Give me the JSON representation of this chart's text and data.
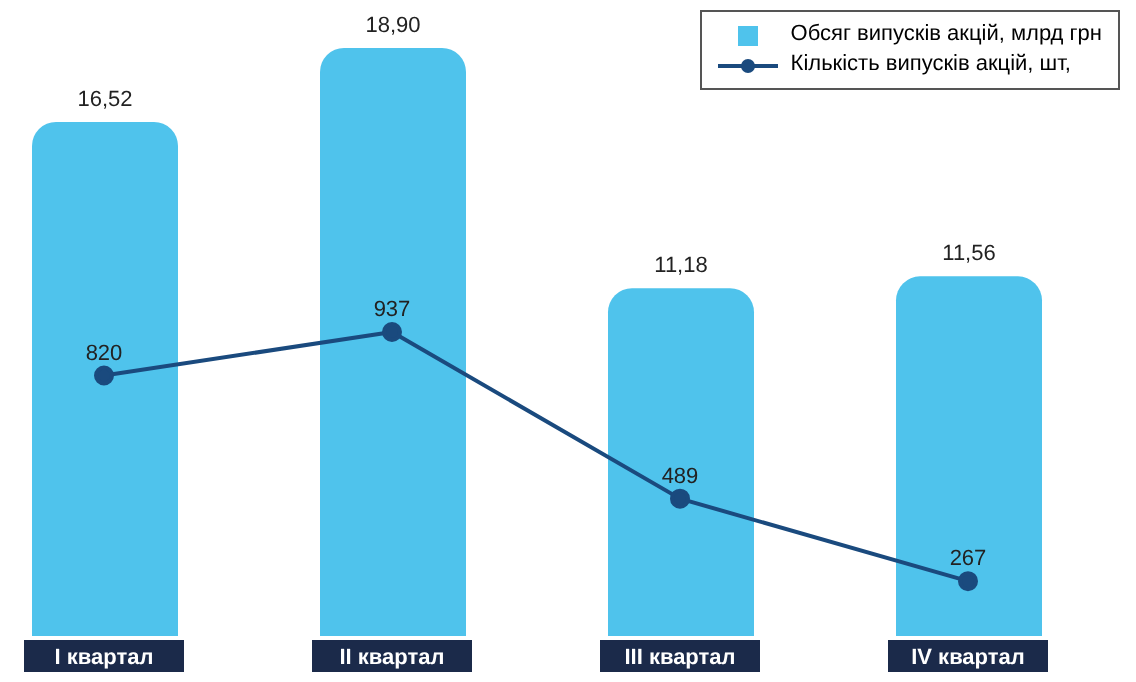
{
  "chart_data": {
    "type": "bar",
    "categories": [
      "I квартал",
      "II квартал",
      "III квартал",
      "IV квартал"
    ],
    "series": [
      {
        "name": "Обсяг випусків акцій, млрд грн",
        "color": "#4fc3ec",
        "values": [
          16.52,
          18.9,
          11.18,
          11.56
        ],
        "value_labels": [
          "16,52",
          "18,90",
          "11,18",
          "11,56"
        ]
      },
      {
        "name": "Кількість випусків акцій, шт,",
        "type": "line",
        "axis": "y2",
        "color": "#1a4a7e",
        "values": [
          820,
          937,
          489,
          267
        ],
        "value_labels": [
          "820",
          "937",
          "489",
          "267"
        ]
      }
    ],
    "tick_labels": "x",
    "legend": "top right",
    "marker": "circle",
    "line_style": "solid"
  }
}
